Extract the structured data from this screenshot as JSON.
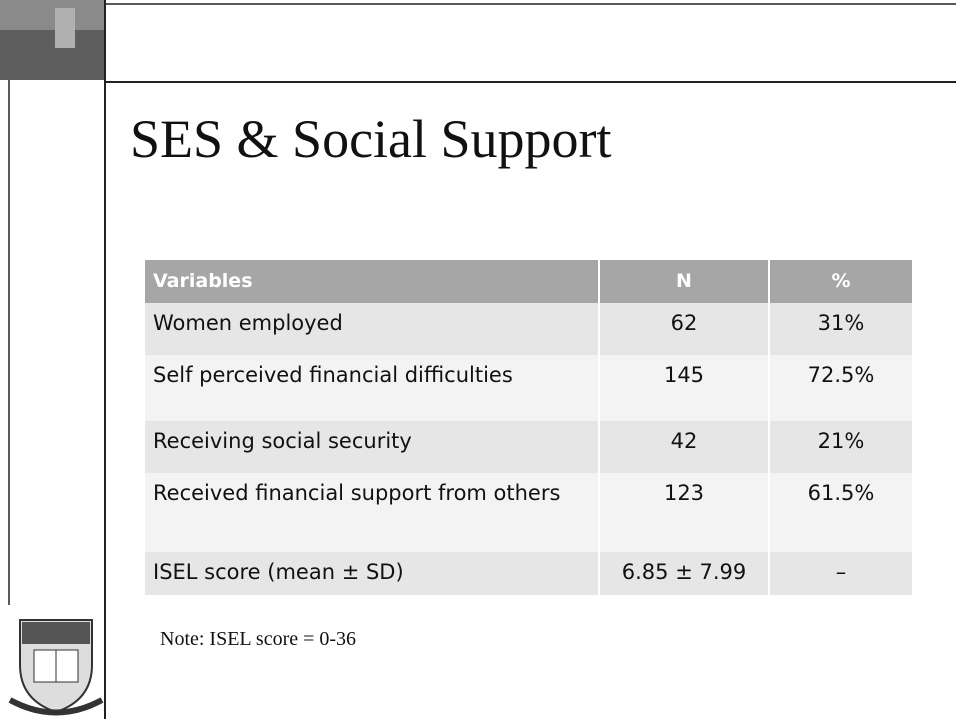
{
  "slide": {
    "title": "SES & Social Support",
    "table": {
      "header": [
        "Variables",
        "N",
        "%"
      ],
      "rows": [
        [
          "Women employed",
          "62",
          "31%"
        ],
        [
          "Self perceived financial difficulties",
          "145",
          "72.5%"
        ],
        [
          "Receiving social security",
          "42",
          "21%"
        ],
        [
          "Received financial support from others",
          "123",
          "61.5%"
        ],
        [
          "ISEL score (mean ± SD)",
          "6.85 ± 7.99",
          "–"
        ]
      ]
    },
    "note": "Note: ISEL score = 0-36"
  }
}
